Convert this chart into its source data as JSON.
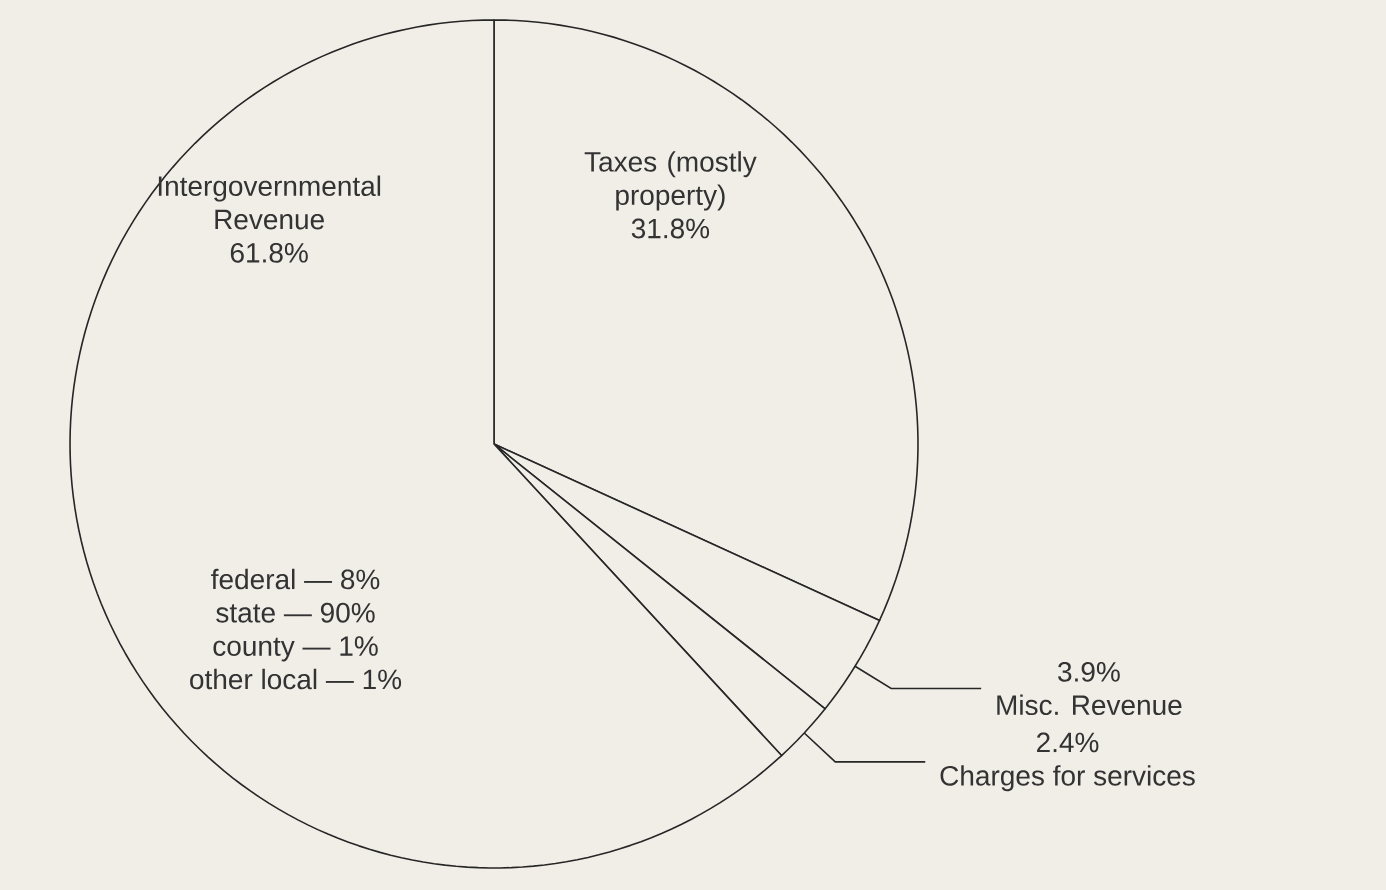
{
  "chart_data": {
    "type": "pie",
    "categories": [
      "Taxes (mostly property)",
      "Misc. Revenue",
      "Charges for services",
      "Intergovernmental Revenue"
    ],
    "values": [
      31.8,
      3.9,
      2.4,
      61.8
    ],
    "value_labels": [
      "31.8%",
      "3.9%",
      "2.4%",
      "61.8%"
    ],
    "colors": [
      "#f1eee8",
      "#f1eee8",
      "#f1eee8",
      "#f1eee8"
    ],
    "annotations": [
      "federal — 8%",
      "state — 90%",
      "county — 1%",
      "other local — 1%"
    ]
  }
}
